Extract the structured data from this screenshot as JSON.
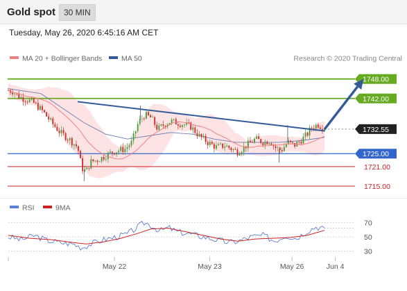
{
  "header": {
    "title": "Gold spot",
    "timeframe": "30 MIN"
  },
  "datetime": "Tuesday, May 26, 2020 6:45:16 AM CET",
  "legend": {
    "ma20": "MA 20 + Bollinger Bands",
    "ma50": "MA 50",
    "copyright": "Research © 2020 Trading Central"
  },
  "rsi_legend": {
    "rsi": "RSI",
    "ma": "9MA"
  },
  "colors": {
    "green_level": "#66aa22",
    "blue_level": "#3366cc",
    "red_level": "#cc2222",
    "trend": "#335a99",
    "ma20": "#f08080",
    "ma50": "#6a7bb5",
    "bollinger": "#fde3e3",
    "candle_up": "#4c9a3c",
    "candle_down": "#c9302c",
    "rsi": "#5b7fd4",
    "rsi_ma": "#cc2222"
  },
  "chart_data": [
    {
      "type": "candlestick",
      "title": "Gold spot",
      "timeframe": "30 MIN",
      "x_ticks": [
        "May 22",
        "May 23",
        "May 26",
        "Jun 4"
      ],
      "ylim": [
        1712,
        1752
      ],
      "levels": [
        {
          "value": 1748.0,
          "label": "1748.00",
          "kind": "resistance"
        },
        {
          "value": 1742.0,
          "label": "1742.00",
          "kind": "resistance"
        },
        {
          "value": 1732.55,
          "label": "1732.55",
          "kind": "current"
        },
        {
          "value": 1725.0,
          "label": "1725.00",
          "kind": "pivot"
        },
        {
          "value": 1721.0,
          "label": "1721.00",
          "kind": "support"
        },
        {
          "value": 1715.0,
          "label": "1715.00",
          "kind": "support"
        }
      ],
      "close_path": [
        [
          0,
          1744.5
        ],
        [
          0.2,
          1744.2
        ],
        [
          0.5,
          1742.5
        ],
        [
          0.9,
          1741.5
        ],
        [
          1.2,
          1740.5
        ],
        [
          1.6,
          1738.0
        ],
        [
          2.0,
          1734.5
        ],
        [
          2.4,
          1731.5
        ],
        [
          2.8,
          1729.5
        ],
        [
          3.2,
          1727.0
        ],
        [
          3.4,
          1720.5
        ],
        [
          3.6,
          1719.5
        ],
        [
          3.8,
          1722.5
        ],
        [
          4.1,
          1723.0
        ],
        [
          4.4,
          1724.0
        ],
        [
          4.8,
          1725.5
        ],
        [
          5.1,
          1726.0
        ],
        [
          5.4,
          1726.5
        ],
        [
          5.7,
          1728.5
        ],
        [
          6.0,
          1734.5
        ],
        [
          6.3,
          1737.0
        ],
        [
          6.6,
          1736.0
        ],
        [
          6.9,
          1732.5
        ],
        [
          7.2,
          1734.0
        ],
        [
          7.5,
          1735.0
        ],
        [
          7.8,
          1734.5
        ],
        [
          8.1,
          1734.0
        ],
        [
          8.4,
          1733.5
        ],
        [
          8.8,
          1730.5
        ],
        [
          9.2,
          1728.5
        ],
        [
          9.6,
          1727.0
        ],
        [
          10.0,
          1727.5
        ],
        [
          10.3,
          1726.5
        ],
        [
          10.6,
          1725.5
        ],
        [
          11.0,
          1727.5
        ],
        [
          11.4,
          1729.5
        ],
        [
          11.8,
          1728.5
        ],
        [
          12.1,
          1729.0
        ],
        [
          12.3,
          1727.0
        ],
        [
          12.6,
          1726.0
        ],
        [
          12.9,
          1728.5
        ],
        [
          13.2,
          1727.5
        ],
        [
          13.5,
          1729.0
        ],
        [
          13.8,
          1731.0
        ],
        [
          14.0,
          1733.0
        ],
        [
          14.3,
          1734.0
        ],
        [
          14.6,
          1732.55
        ]
      ],
      "ma50_path": [
        [
          0,
          1745.0
        ],
        [
          1.5,
          1743.5
        ],
        [
          2.5,
          1739.0
        ],
        [
          3.5,
          1734.5
        ],
        [
          4.5,
          1731.0
        ],
        [
          5.5,
          1729.5
        ],
        [
          6.5,
          1730.5
        ],
        [
          7.5,
          1731.5
        ],
        [
          8.5,
          1731.0
        ],
        [
          9.5,
          1729.5
        ],
        [
          10.5,
          1728.5
        ],
        [
          11.5,
          1728.5
        ],
        [
          12.5,
          1728.5
        ],
        [
          13.5,
          1729.0
        ],
        [
          14.6,
          1730.0
        ]
      ],
      "trendline": [
        [
          3.2,
          1741.0
        ],
        [
          14.6,
          1732.0
        ]
      ],
      "projection_arrow": [
        [
          14.6,
          1732.5
        ],
        [
          16.4,
          1748.0
        ]
      ],
      "x_tick_positions": [
        4.9,
        9.3,
        13.1,
        15.1
      ]
    },
    {
      "type": "line",
      "title": "RSI",
      "series": [
        {
          "name": "RSI"
        },
        {
          "name": "9MA"
        }
      ],
      "ylim": [
        20,
        80
      ],
      "y_ticks": [
        30,
        50,
        70
      ],
      "rsi": [
        [
          0,
          50
        ],
        [
          0.6,
          46
        ],
        [
          1.2,
          52
        ],
        [
          1.8,
          45
        ],
        [
          2.4,
          42
        ],
        [
          3.0,
          40
        ],
        [
          3.4,
          35
        ],
        [
          3.8,
          40
        ],
        [
          4.4,
          46
        ],
        [
          5.0,
          50
        ],
        [
          5.5,
          54
        ],
        [
          6.0,
          64
        ],
        [
          6.3,
          70
        ],
        [
          6.6,
          66
        ],
        [
          7.0,
          58
        ],
        [
          7.4,
          63
        ],
        [
          7.8,
          57
        ],
        [
          8.4,
          54
        ],
        [
          9.0,
          50
        ],
        [
          9.6,
          46
        ],
        [
          10.2,
          42
        ],
        [
          10.6,
          44
        ],
        [
          11.2,
          50
        ],
        [
          11.8,
          52
        ],
        [
          12.3,
          44
        ],
        [
          12.8,
          52
        ],
        [
          13.3,
          48
        ],
        [
          13.8,
          58
        ],
        [
          14.2,
          64
        ],
        [
          14.6,
          62
        ]
      ],
      "rsi_ma": [
        [
          0,
          52
        ],
        [
          1.0,
          48
        ],
        [
          2.0,
          46
        ],
        [
          3.0,
          42
        ],
        [
          3.6,
          40
        ],
        [
          4.4,
          43
        ],
        [
          5.2,
          48
        ],
        [
          6.0,
          55
        ],
        [
          6.6,
          61
        ],
        [
          7.4,
          62
        ],
        [
          8.2,
          57
        ],
        [
          9.0,
          52
        ],
        [
          9.8,
          47
        ],
        [
          10.6,
          44
        ],
        [
          11.4,
          47
        ],
        [
          12.2,
          48
        ],
        [
          13.0,
          49
        ],
        [
          13.8,
          52
        ],
        [
          14.6,
          59
        ]
      ]
    }
  ]
}
